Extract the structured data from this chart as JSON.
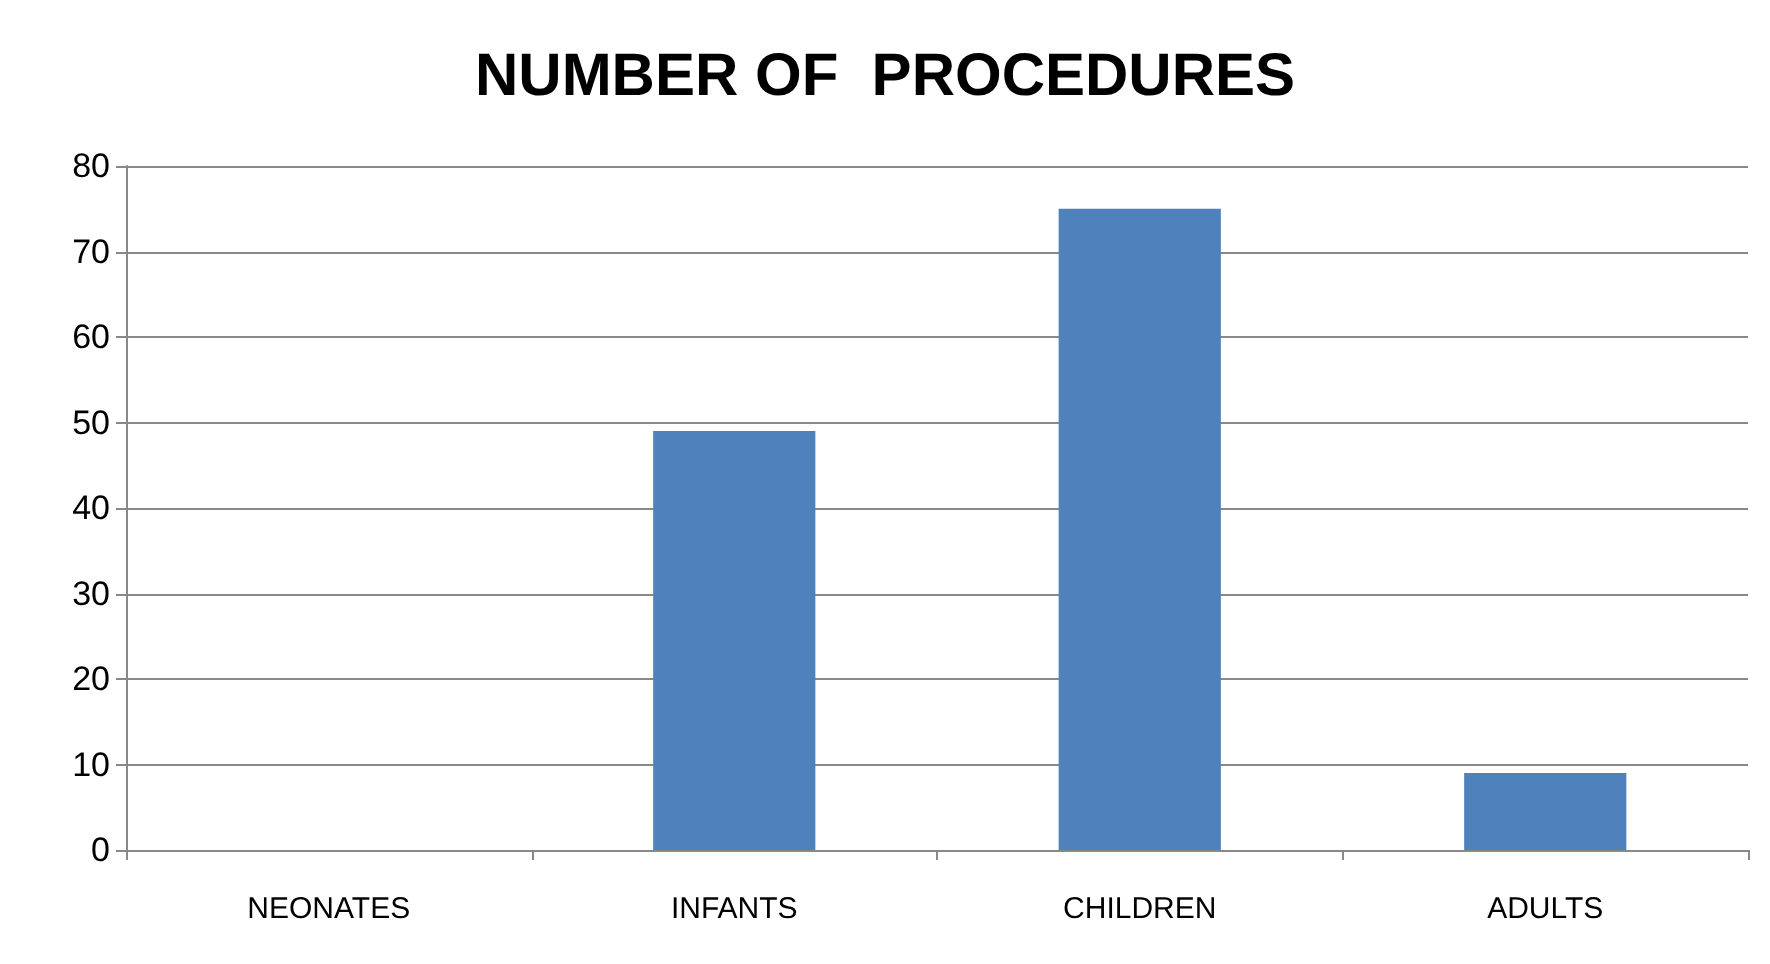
{
  "chart_data": {
    "type": "bar",
    "title": "NUMBER OF  PROCEDURES",
    "categories": [
      "NEONATES",
      "INFANTS",
      "CHILDREN",
      "ADULTS"
    ],
    "values": [
      0,
      49,
      75,
      9
    ],
    "color": "#4f81bd",
    "ylim": [
      0,
      80
    ],
    "yticks": [
      0,
      10,
      20,
      30,
      40,
      50,
      60,
      70,
      80
    ],
    "grid": "y"
  }
}
